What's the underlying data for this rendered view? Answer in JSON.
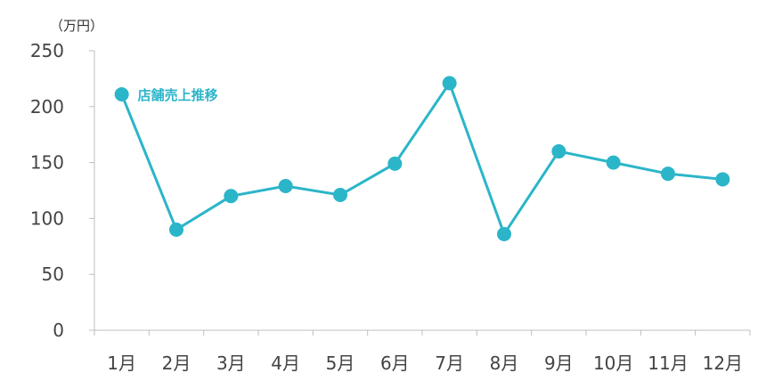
{
  "chart_data": {
    "type": "line",
    "unit_label": "（万円）",
    "categories": [
      "1月",
      "2月",
      "3月",
      "4月",
      "5月",
      "6月",
      "7月",
      "8月",
      "9月",
      "10月",
      "11月",
      "12月"
    ],
    "y_ticks": [
      "0",
      "50",
      "100",
      "150",
      "200",
      "250"
    ],
    "ylim": [
      0,
      250
    ],
    "series": [
      {
        "name": "店舗売上推移",
        "values": [
          211,
          90,
          120,
          129,
          121,
          149,
          221,
          86,
          160,
          150,
          140,
          135
        ]
      }
    ],
    "colors": {
      "series": "#2bb5c9",
      "axis": "#bfbfbf",
      "text": "#444444"
    },
    "grid": false,
    "legend": "inline-label"
  }
}
